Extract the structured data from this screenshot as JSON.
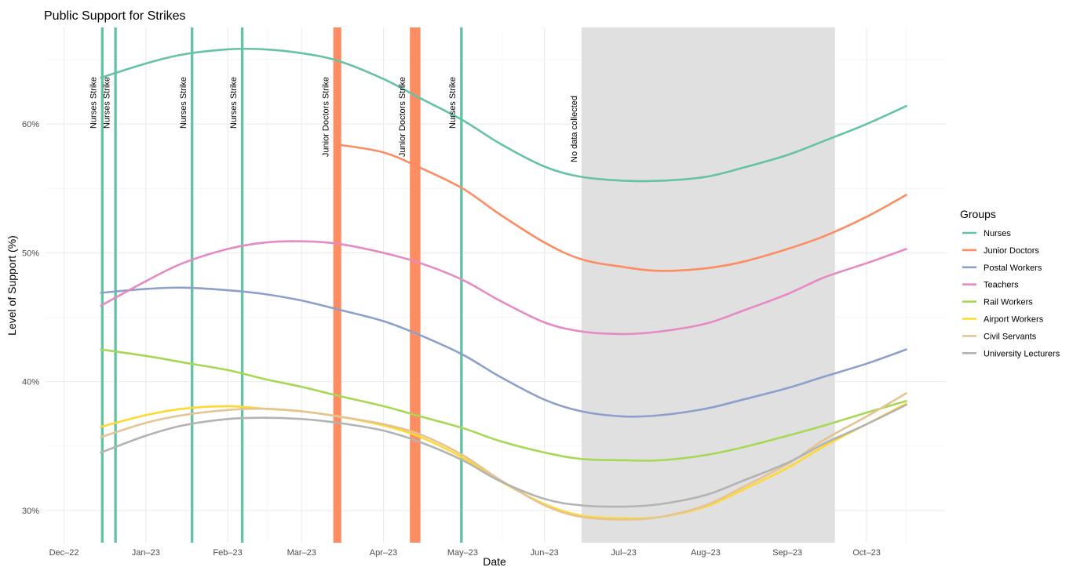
{
  "chart_data": {
    "type": "line",
    "title": "Public Support for Strikes",
    "xlabel": "Date",
    "ylabel": "Level of Support (%)",
    "xlim": [
      "2022-11-24",
      "2023-10-31"
    ],
    "ylim": [
      27.5,
      67.5
    ],
    "x_ticks": [
      {
        "date": "2022-12-01",
        "label": "Dec–22"
      },
      {
        "date": "2023-01-01",
        "label": "Jan–23"
      },
      {
        "date": "2023-02-01",
        "label": "Feb–23"
      },
      {
        "date": "2023-03-01",
        "label": "Mar–23"
      },
      {
        "date": "2023-04-01",
        "label": "Apr–23"
      },
      {
        "date": "2023-05-01",
        "label": "May–23"
      },
      {
        "date": "2023-06-01",
        "label": "Jun–23"
      },
      {
        "date": "2023-07-01",
        "label": "Jul–23"
      },
      {
        "date": "2023-08-01",
        "label": "Aug–23"
      },
      {
        "date": "2023-09-01",
        "label": "Sep–23"
      },
      {
        "date": "2023-10-01",
        "label": "Oct–23"
      }
    ],
    "y_ticks": [
      {
        "value": 30,
        "label": "30%"
      },
      {
        "value": 40,
        "label": "40%"
      },
      {
        "value": 50,
        "label": "50%"
      },
      {
        "value": 60,
        "label": "60%"
      }
    ],
    "grid": true,
    "legend": {
      "title": "Groups",
      "placement": "right"
    },
    "no_data_region": {
      "start": "2023-06-15",
      "end": "2023-09-19",
      "label": "No data collected",
      "color": "#e0e0e0"
    },
    "strike_events": [
      {
        "label": "Nurses Strike",
        "start": "2022-12-15",
        "end": "2022-12-15",
        "color": "#66c2a5"
      },
      {
        "label": "Nurses Strike",
        "start": "2022-12-20",
        "end": "2022-12-20",
        "color": "#66c2a5"
      },
      {
        "label": "Nurses Strike",
        "start": "2023-01-18",
        "end": "2023-01-18",
        "color": "#66c2a5"
      },
      {
        "label": "Nurses Strike",
        "start": "2023-02-06",
        "end": "2023-02-06",
        "color": "#66c2a5"
      },
      {
        "label": "Junior Doctors Strike",
        "start": "2023-03-13",
        "end": "2023-03-15",
        "color": "#fc8d62"
      },
      {
        "label": "Junior Doctors Strike",
        "start": "2023-04-11",
        "end": "2023-04-14",
        "color": "#fc8d62"
      },
      {
        "label": "Nurses Strike",
        "start": "2023-04-30",
        "end": "2023-04-30",
        "color": "#66c2a5"
      }
    ],
    "series": [
      {
        "name": "Nurses",
        "color": "#66c2a5",
        "x": [
          "2022-12-15",
          "2023-01-01",
          "2023-01-15",
          "2023-02-01",
          "2023-02-15",
          "2023-03-01",
          "2023-03-15",
          "2023-04-01",
          "2023-04-15",
          "2023-05-01",
          "2023-05-15",
          "2023-06-01",
          "2023-06-15",
          "2023-07-01",
          "2023-07-15",
          "2023-08-01",
          "2023-08-15",
          "2023-09-01",
          "2023-09-15",
          "2023-10-01",
          "2023-10-16"
        ],
        "y": [
          63.6,
          64.7,
          65.4,
          65.8,
          65.8,
          65.5,
          64.9,
          63.5,
          62.0,
          60.3,
          58.5,
          56.7,
          55.9,
          55.6,
          55.6,
          55.9,
          56.6,
          57.6,
          58.7,
          60.0,
          61.4
        ]
      },
      {
        "name": "Junior Doctors",
        "color": "#fc8d62",
        "x": [
          "2023-03-15",
          "2023-04-01",
          "2023-04-15",
          "2023-05-01",
          "2023-05-15",
          "2023-06-01",
          "2023-06-15",
          "2023-07-01",
          "2023-07-15",
          "2023-08-01",
          "2023-08-15",
          "2023-09-01",
          "2023-09-15",
          "2023-10-01",
          "2023-10-16"
        ],
        "y": [
          58.4,
          57.8,
          56.6,
          55.0,
          53.0,
          50.8,
          49.5,
          48.9,
          48.6,
          48.8,
          49.3,
          50.3,
          51.3,
          52.8,
          54.5
        ]
      },
      {
        "name": "Postal Workers",
        "color": "#8da0cb",
        "x": [
          "2022-12-15",
          "2023-01-01",
          "2023-01-15",
          "2023-02-01",
          "2023-02-15",
          "2023-03-01",
          "2023-03-15",
          "2023-04-01",
          "2023-04-15",
          "2023-05-01",
          "2023-05-15",
          "2023-06-01",
          "2023-06-15",
          "2023-07-01",
          "2023-07-15",
          "2023-08-01",
          "2023-08-15",
          "2023-09-01",
          "2023-09-15",
          "2023-10-01",
          "2023-10-16"
        ],
        "y": [
          46.9,
          47.2,
          47.3,
          47.1,
          46.8,
          46.3,
          45.6,
          44.7,
          43.6,
          42.1,
          40.4,
          38.6,
          37.7,
          37.3,
          37.4,
          37.9,
          38.6,
          39.5,
          40.4,
          41.4,
          42.5
        ]
      },
      {
        "name": "Teachers",
        "color": "#e78ac3",
        "x": [
          "2022-12-15",
          "2023-01-01",
          "2023-01-15",
          "2023-02-01",
          "2023-02-15",
          "2023-03-01",
          "2023-03-15",
          "2023-04-01",
          "2023-04-15",
          "2023-05-01",
          "2023-05-15",
          "2023-06-01",
          "2023-06-15",
          "2023-07-01",
          "2023-07-15",
          "2023-08-01",
          "2023-08-15",
          "2023-09-01",
          "2023-09-15",
          "2023-10-01",
          "2023-10-16"
        ],
        "y": [
          45.9,
          47.8,
          49.2,
          50.3,
          50.8,
          50.9,
          50.7,
          50.0,
          49.2,
          47.9,
          46.3,
          44.6,
          43.9,
          43.7,
          43.9,
          44.5,
          45.5,
          46.8,
          48.1,
          49.2,
          50.3
        ]
      },
      {
        "name": "Rail Workers",
        "color": "#a6d854",
        "x": [
          "2022-12-15",
          "2023-01-01",
          "2023-01-15",
          "2023-02-01",
          "2023-02-15",
          "2023-03-01",
          "2023-03-15",
          "2023-04-01",
          "2023-04-15",
          "2023-05-01",
          "2023-05-15",
          "2023-06-01",
          "2023-06-15",
          "2023-07-01",
          "2023-07-15",
          "2023-08-01",
          "2023-08-15",
          "2023-09-01",
          "2023-09-15",
          "2023-10-01",
          "2023-10-16"
        ],
        "y": [
          42.5,
          42.0,
          41.5,
          40.9,
          40.2,
          39.6,
          38.9,
          38.1,
          37.3,
          36.4,
          35.4,
          34.5,
          34.0,
          33.9,
          33.9,
          34.3,
          34.9,
          35.8,
          36.6,
          37.6,
          38.5
        ]
      },
      {
        "name": "Airport Workers",
        "color": "#ffd92f",
        "x": [
          "2022-12-15",
          "2023-01-01",
          "2023-01-15",
          "2023-02-01",
          "2023-02-15",
          "2023-03-01",
          "2023-03-15",
          "2023-04-01",
          "2023-04-15",
          "2023-05-01",
          "2023-05-15",
          "2023-06-01",
          "2023-06-15",
          "2023-07-01",
          "2023-07-15",
          "2023-08-01",
          "2023-08-15",
          "2023-09-01",
          "2023-09-15",
          "2023-10-01",
          "2023-10-16"
        ],
        "y": [
          36.5,
          37.4,
          37.9,
          38.1,
          37.9,
          37.7,
          37.3,
          36.6,
          35.7,
          34.1,
          32.3,
          30.5,
          29.6,
          29.4,
          29.5,
          30.3,
          31.6,
          33.3,
          35.0,
          36.7,
          38.3
        ]
      },
      {
        "name": "Civil Servants",
        "color": "#e5c494",
        "x": [
          "2022-12-15",
          "2023-01-01",
          "2023-01-15",
          "2023-02-01",
          "2023-02-15",
          "2023-03-01",
          "2023-03-15",
          "2023-04-01",
          "2023-04-15",
          "2023-05-01",
          "2023-05-15",
          "2023-06-01",
          "2023-06-15",
          "2023-07-01",
          "2023-07-15",
          "2023-08-01",
          "2023-08-15",
          "2023-09-01",
          "2023-09-15",
          "2023-10-01",
          "2023-10-16"
        ],
        "y": [
          35.7,
          36.8,
          37.4,
          37.8,
          37.9,
          37.7,
          37.3,
          36.7,
          35.9,
          34.3,
          32.4,
          30.4,
          29.5,
          29.3,
          29.5,
          30.4,
          31.8,
          33.6,
          35.5,
          37.3,
          39.1
        ]
      },
      {
        "name": "University Lecturers",
        "color": "#b3b3b3",
        "x": [
          "2022-12-15",
          "2023-01-01",
          "2023-01-15",
          "2023-02-01",
          "2023-02-15",
          "2023-03-01",
          "2023-03-15",
          "2023-04-01",
          "2023-04-15",
          "2023-05-01",
          "2023-05-15",
          "2023-06-01",
          "2023-06-15",
          "2023-07-01",
          "2023-07-15",
          "2023-08-01",
          "2023-08-15",
          "2023-09-01",
          "2023-09-15",
          "2023-10-01",
          "2023-10-16"
        ],
        "y": [
          34.5,
          35.8,
          36.6,
          37.1,
          37.2,
          37.1,
          36.8,
          36.2,
          35.3,
          33.9,
          32.3,
          30.9,
          30.4,
          30.3,
          30.5,
          31.2,
          32.3,
          33.7,
          35.2,
          36.7,
          38.2
        ]
      }
    ]
  }
}
